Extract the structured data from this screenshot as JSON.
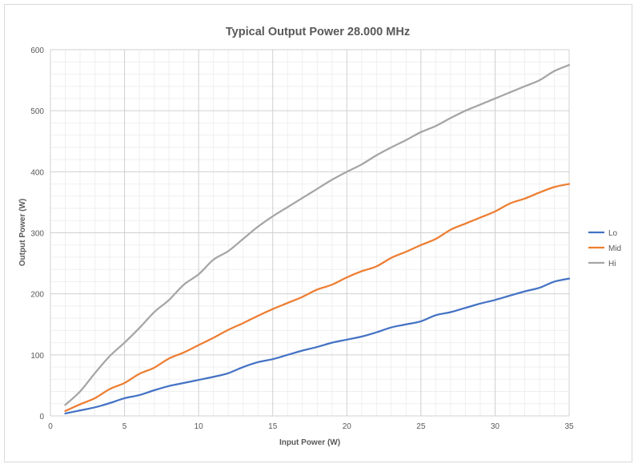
{
  "chart_data": {
    "type": "line",
    "title": "Typical Output Power 28.000 MHz",
    "xlabel": "Input Power (W)",
    "ylabel": "Output Power (W)",
    "xlim": [
      0,
      35
    ],
    "ylim": [
      0,
      600
    ],
    "x_ticks": [
      "0",
      "5",
      "10",
      "15",
      "20",
      "25",
      "30",
      "35"
    ],
    "y_ticks": [
      "0",
      "100",
      "200",
      "300",
      "400",
      "500",
      "600"
    ],
    "grid": true,
    "legend_position": "right",
    "series": [
      {
        "name": "Lo",
        "color": "#4472c4",
        "x": [
          1,
          2,
          3,
          4,
          5,
          6,
          7,
          8,
          9,
          10,
          11,
          12,
          13,
          14,
          15,
          16,
          17,
          18,
          19,
          20,
          21,
          22,
          23,
          24,
          25,
          26,
          27,
          28,
          29,
          30,
          31,
          32,
          33,
          34,
          35
        ],
        "values": [
          4,
          9,
          14,
          21,
          29,
          34,
          42,
          49,
          54,
          59,
          64,
          70,
          80,
          88,
          93,
          100,
          107,
          113,
          120,
          125,
          130,
          137,
          145,
          150,
          155,
          165,
          170,
          177,
          184,
          190,
          197,
          204,
          210,
          220,
          225
        ]
      },
      {
        "name": "Mid",
        "color": "#ed7d31",
        "x": [
          1,
          2,
          3,
          4,
          5,
          6,
          7,
          8,
          9,
          10,
          11,
          12,
          13,
          14,
          15,
          16,
          17,
          18,
          19,
          20,
          21,
          22,
          23,
          24,
          25,
          26,
          27,
          28,
          29,
          30,
          31,
          32,
          33,
          34,
          35
        ],
        "values": [
          8,
          19,
          29,
          44,
          54,
          69,
          79,
          94,
          104,
          116,
          128,
          141,
          152,
          164,
          175,
          185,
          195,
          207,
          215,
          227,
          237,
          245,
          259,
          269,
          280,
          290,
          305,
          315,
          325,
          335,
          348,
          356,
          366,
          375,
          380
        ]
      },
      {
        "name": "Hi",
        "color": "#a5a5a5",
        "x": [
          1,
          2,
          3,
          4,
          5,
          6,
          7,
          8,
          9,
          10,
          11,
          12,
          13,
          14,
          15,
          16,
          17,
          18,
          19,
          20,
          21,
          22,
          23,
          24,
          25,
          26,
          27,
          28,
          29,
          30,
          31,
          32,
          33,
          34,
          35
        ],
        "values": [
          18,
          40,
          70,
          98,
          120,
          144,
          170,
          190,
          215,
          232,
          256,
          270,
          290,
          310,
          327,
          342,
          357,
          372,
          387,
          400,
          412,
          427,
          440,
          452,
          465,
          475,
          488,
          500,
          510,
          520,
          530,
          540,
          550,
          565,
          575
        ]
      }
    ]
  }
}
